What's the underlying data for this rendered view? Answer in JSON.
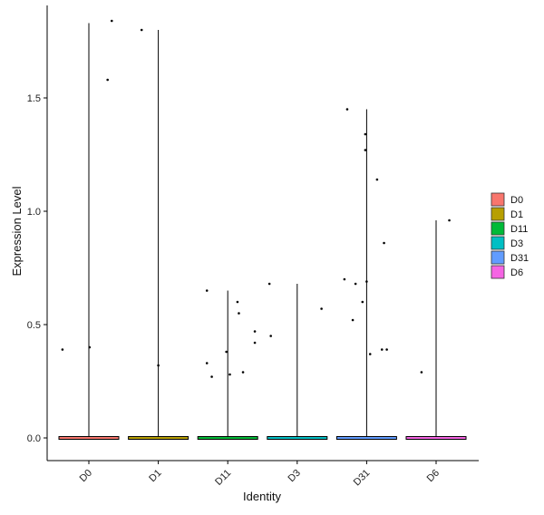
{
  "chart_data": {
    "type": "violin",
    "xlabel": "Identity",
    "ylabel": "Expression Level",
    "ylim": [
      -0.1,
      1.9
    ],
    "yticks": [
      "0.0",
      "0.5",
      "1.0",
      "1.5"
    ],
    "ytick_values": [
      0,
      0.5,
      1.0,
      1.5
    ],
    "categories": [
      "D0",
      "D1",
      "D11",
      "D3",
      "D31",
      "D6"
    ],
    "legend": {
      "placement": "right",
      "entries": [
        {
          "label": "D0",
          "color": "#F8766D"
        },
        {
          "label": "D1",
          "color": "#B79F00"
        },
        {
          "label": "D11",
          "color": "#00BA38"
        },
        {
          "label": "D3",
          "color": "#00BFC4"
        },
        {
          "label": "D31",
          "color": "#619CFF"
        },
        {
          "label": "D6",
          "color": "#F564E3"
        }
      ]
    },
    "violin_max": [
      1.83,
      1.8,
      0.65,
      0.68,
      1.45,
      0.96
    ],
    "points": [
      {
        "group": "D0",
        "offset": -0.38,
        "y": 0.39
      },
      {
        "group": "D0",
        "offset": 0.01,
        "y": 0.4
      },
      {
        "group": "D0",
        "offset": 0.27,
        "y": 1.58
      },
      {
        "group": "D0",
        "offset": 0.33,
        "y": 1.84
      },
      {
        "group": "D1",
        "offset": -0.24,
        "y": 1.8
      },
      {
        "group": "D1",
        "offset": 0.0,
        "y": 0.32
      },
      {
        "group": "D11",
        "offset": -0.3,
        "y": 0.65
      },
      {
        "group": "D11",
        "offset": -0.3,
        "y": 0.33
      },
      {
        "group": "D11",
        "offset": -0.23,
        "y": 0.27
      },
      {
        "group": "D11",
        "offset": -0.02,
        "y": 0.38
      },
      {
        "group": "D11",
        "offset": 0.03,
        "y": 0.28
      },
      {
        "group": "D11",
        "offset": 0.14,
        "y": 0.6
      },
      {
        "group": "D11",
        "offset": 0.16,
        "y": 0.55
      },
      {
        "group": "D11",
        "offset": 0.22,
        "y": 0.29
      },
      {
        "group": "D11",
        "offset": 0.39,
        "y": 0.47
      },
      {
        "group": "D11",
        "offset": 0.39,
        "y": 0.42
      },
      {
        "group": "D3",
        "offset": -0.4,
        "y": 0.68
      },
      {
        "group": "D3",
        "offset": -0.38,
        "y": 0.45
      },
      {
        "group": "D3",
        "offset": 0.35,
        "y": 0.57
      },
      {
        "group": "D31",
        "offset": -0.32,
        "y": 0.7
      },
      {
        "group": "D31",
        "offset": -0.28,
        "y": 1.45
      },
      {
        "group": "D31",
        "offset": -0.2,
        "y": 0.52
      },
      {
        "group": "D31",
        "offset": -0.16,
        "y": 0.68
      },
      {
        "group": "D31",
        "offset": -0.06,
        "y": 0.6
      },
      {
        "group": "D31",
        "offset": -0.02,
        "y": 1.34
      },
      {
        "group": "D31",
        "offset": -0.02,
        "y": 1.27
      },
      {
        "group": "D31",
        "offset": 0.0,
        "y": 0.69
      },
      {
        "group": "D31",
        "offset": 0.05,
        "y": 0.37
      },
      {
        "group": "D31",
        "offset": 0.15,
        "y": 1.14
      },
      {
        "group": "D31",
        "offset": 0.22,
        "y": 0.39
      },
      {
        "group": "D31",
        "offset": 0.25,
        "y": 0.86
      },
      {
        "group": "D31",
        "offset": 0.29,
        "y": 0.39
      },
      {
        "group": "D6",
        "offset": -0.21,
        "y": 0.29
      },
      {
        "group": "D6",
        "offset": 0.19,
        "y": 0.96
      }
    ],
    "grid": false
  }
}
